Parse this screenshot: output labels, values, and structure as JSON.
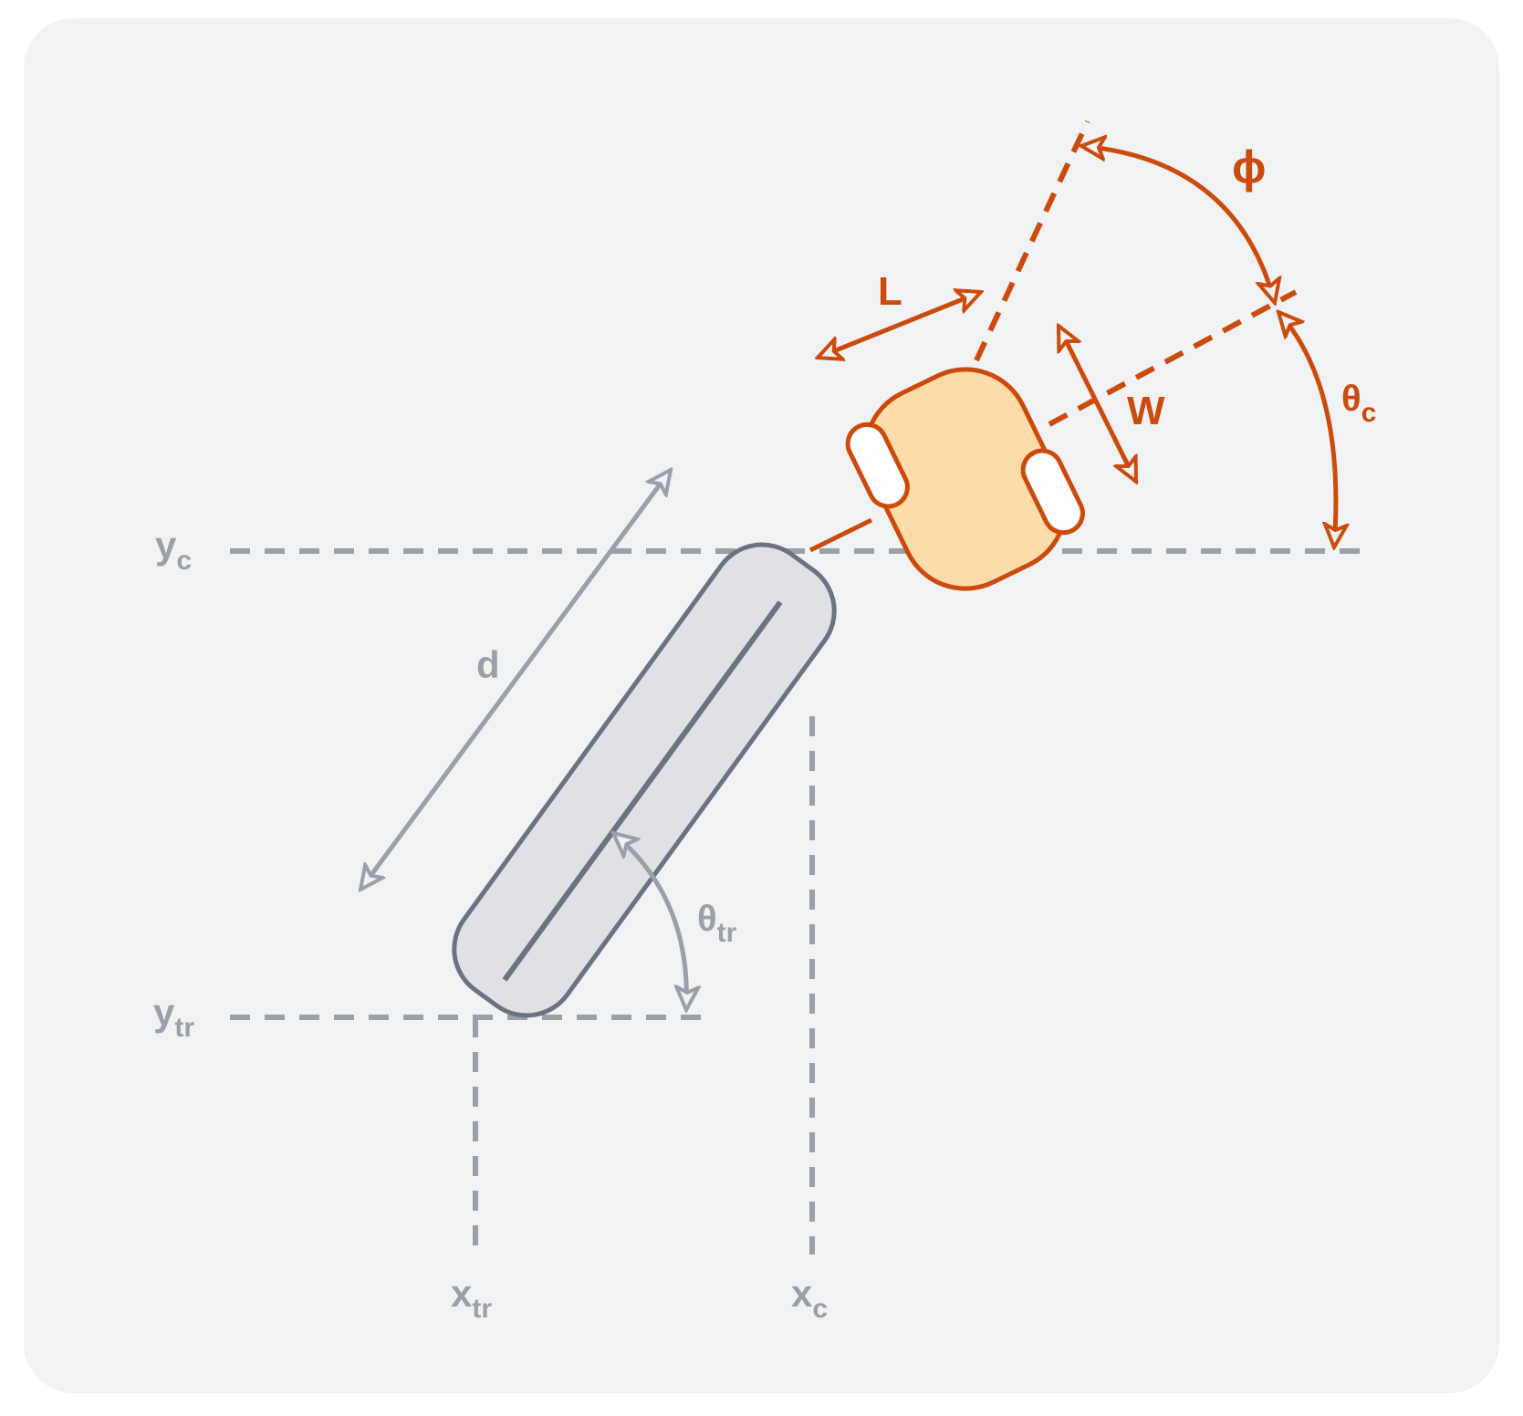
{
  "colors": {
    "panel": "#f1f2f4",
    "gray": "#9aa0a8",
    "dark_gray": "#6b7280",
    "orange": "#cc4b0c",
    "cab_fill": "#fcdca8",
    "trailer_fill": "#dfe1e5"
  },
  "labels": {
    "yc": {
      "main": "y",
      "sub": "c"
    },
    "ytr": {
      "main": "y",
      "sub": "tr"
    },
    "xtr": {
      "main": "x",
      "sub": "tr"
    },
    "xc": {
      "main": "x",
      "sub": "c"
    },
    "d": "d",
    "theta_tr": {
      "main": "θ",
      "sub": "tr"
    },
    "L": "L",
    "W": "W",
    "phi": "ϕ",
    "theta_c": {
      "main": "θ",
      "sub": "c"
    }
  }
}
